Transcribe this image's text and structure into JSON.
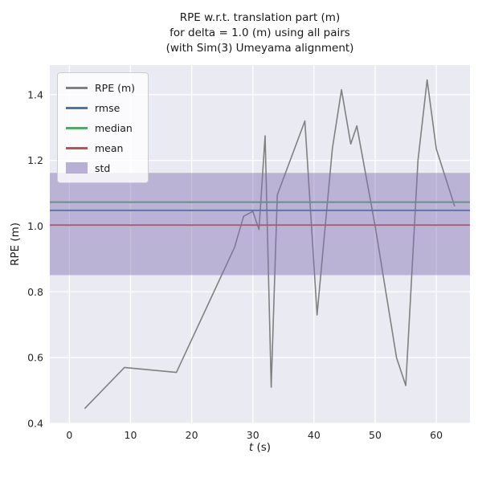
{
  "chart_data": {
    "type": "line",
    "title": "RPE w.r.t. translation part (m) for delta = 1.0 (m) using all pairs (with Sim(3) Umeyama alignment)",
    "title_lines": [
      "RPE w.r.t. translation part (m)",
      "for delta = 1.0 (m) using all pairs",
      "(with Sim(3) Umeyama alignment)"
    ],
    "xlabel": "t (s)",
    "xlabel_parts": {
      "italic": "t",
      "rest": " (s)"
    },
    "ylabel": "RPE (m)",
    "xlim": [
      -3.2,
      65.5
    ],
    "ylim": [
      0.4,
      1.49
    ],
    "xticks": [
      0,
      10,
      20,
      30,
      40,
      50,
      60
    ],
    "xtick_labels": [
      "0",
      "10",
      "20",
      "30",
      "40",
      "50",
      "60"
    ],
    "yticks": [
      0.4,
      0.6,
      0.8,
      1.0,
      1.2,
      1.4
    ],
    "ytick_labels": [
      "0.4",
      "0.6",
      "0.8",
      "1.0",
      "1.2",
      "1.4"
    ],
    "grid": true,
    "legend_position": "upper-left",
    "plot_bg_color": "#eaeaf2",
    "grid_color": "#ffffff",
    "text_color": "#262626",
    "series": [
      {
        "name": "RPE (m)",
        "kind": "line",
        "color": "#808080",
        "x": [
          2.5,
          9,
          17.5,
          27,
          28.5,
          30,
          31,
          32,
          33,
          34,
          38.5,
          40.5,
          43,
          44.5,
          46,
          47,
          50,
          53.5,
          55,
          57,
          58.5,
          60,
          63
        ],
        "y": [
          0.445,
          0.57,
          0.555,
          0.935,
          1.03,
          1.045,
          0.99,
          1.275,
          0.51,
          1.095,
          1.32,
          0.73,
          1.235,
          1.415,
          1.25,
          1.305,
          1.0,
          0.6,
          0.515,
          1.2,
          1.445,
          1.235,
          1.06
        ]
      },
      {
        "name": "rmse",
        "kind": "hline",
        "color": "#4c72b0",
        "value": 1.048
      },
      {
        "name": "median",
        "kind": "hline",
        "color": "#55a868",
        "value": 1.073
      },
      {
        "name": "mean",
        "kind": "hline",
        "color": "#c44e52",
        "value": 1.003
      },
      {
        "name": "std",
        "kind": "band",
        "color": "#8172b2",
        "opacity": 0.45,
        "range": [
          0.851,
          1.162
        ]
      }
    ]
  }
}
